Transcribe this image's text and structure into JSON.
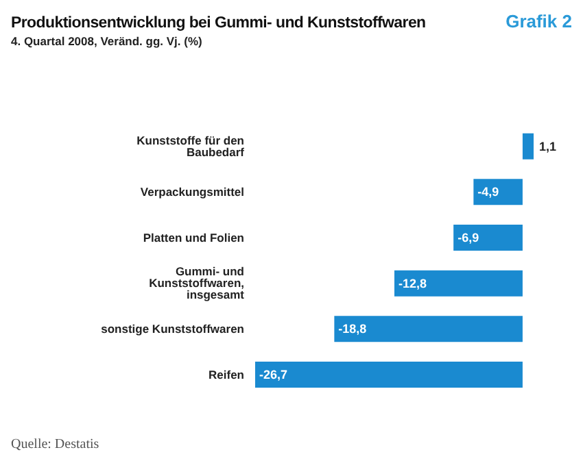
{
  "chart_data": {
    "type": "bar",
    "orientation": "horizontal",
    "title": "Produktionsentwicklung bei Gummi- und Kunststoffwaren",
    "subtitle": "4. Quartal 2008, Veränd. gg. Vj. (%)",
    "categories": [
      "Kunststoffe für den Baubedarf",
      "Verpackungsmittel",
      "Platten und Folien",
      "Gummi- und Kunststoffwaren, insgesamt",
      "sonstige Kunststoffwaren",
      "Reifen"
    ],
    "values": [
      1.1,
      -4.9,
      -6.9,
      -12.8,
      -18.8,
      -26.7
    ],
    "value_labels": [
      "1,1",
      "-4,9",
      "-6,9",
      "-12,8",
      "-18,8",
      "-26,7"
    ],
    "color": "#1a8ad0",
    "annotations": [
      "Grafik 2",
      "Quelle: Destatis"
    ]
  }
}
